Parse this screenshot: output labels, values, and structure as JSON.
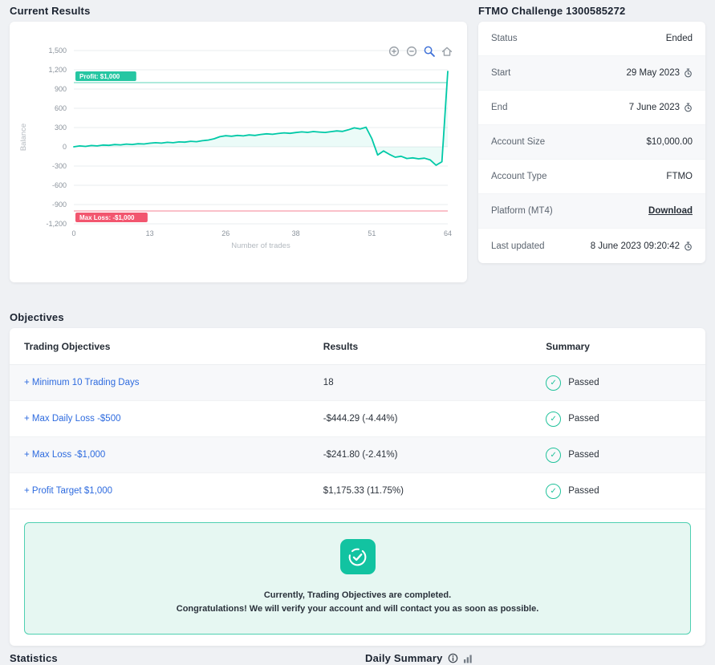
{
  "headings": {
    "current_results": "Current Results",
    "challenge": "FTMO Challenge 1300585272",
    "objectives": "Objectives",
    "statistics": "Statistics",
    "daily_summary": "Daily Summary"
  },
  "colors": {
    "accent_teal": "#00c9a7",
    "danger_red": "#f2566f",
    "link_blue": "#2e6bdf",
    "page_bg": "#eff1f4"
  },
  "chart_data": {
    "type": "line",
    "title": "",
    "xlabel": "Number of trades",
    "ylabel": "Balance",
    "xlim": [
      0,
      64
    ],
    "ylim": [
      -1200,
      1500
    ],
    "xticks": [
      0,
      13,
      26,
      38,
      51,
      64
    ],
    "yticks": [
      1500,
      1200,
      900,
      600,
      300,
      0,
      -300,
      -600,
      -900,
      -1200
    ],
    "ytick_labels": [
      "1,500",
      "1,200",
      "900",
      "600",
      "300",
      "0",
      "-300",
      "-600",
      "-900",
      "-1,200"
    ],
    "grid": true,
    "legend": "none",
    "line_color": "#00c9a7",
    "fill_color": "rgba(0, 201, 167, 0.08)",
    "series": [
      {
        "name": "Balance",
        "y": [
          0,
          14,
          6,
          20,
          14,
          28,
          22,
          35,
          30,
          42,
          36,
          48,
          44,
          56,
          64,
          58,
          70,
          64,
          76,
          72,
          86,
          80,
          95,
          105,
          125,
          158,
          172,
          165,
          178,
          170,
          185,
          178,
          192,
          202,
          195,
          208,
          218,
          210,
          222,
          232,
          225,
          238,
          230,
          224,
          236,
          248,
          240,
          265,
          295,
          278,
          305,
          130,
          -128,
          -65,
          -118,
          -162,
          -148,
          -182,
          -172,
          -188,
          -178,
          -205,
          -288,
          -232,
          1175
        ]
      }
    ],
    "reference_lines": [
      {
        "name": "profit-target-line",
        "label": "Profit: $1,000",
        "value": 1000,
        "color": "#26c6a2"
      },
      {
        "name": "max-loss-line",
        "label": "Max Loss: -$1,000",
        "value": -1000,
        "color": "#f2566f"
      }
    ]
  },
  "modebar_icons": [
    "zoom-in-icon",
    "zoom-out-icon",
    "zoom-box-icon",
    "reset-home-icon"
  ],
  "account_panel": {
    "rows": [
      {
        "key": "status",
        "label": "Status",
        "value": "Ended",
        "clock": false,
        "link": false
      },
      {
        "key": "start",
        "label": "Start",
        "value": "29 May 2023",
        "clock": true,
        "link": false
      },
      {
        "key": "end",
        "label": "End",
        "value": "7 June 2023",
        "clock": true,
        "link": false
      },
      {
        "key": "account-size",
        "label": "Account Size",
        "value": "$10,000.00",
        "clock": false,
        "link": false
      },
      {
        "key": "account-type",
        "label": "Account Type",
        "value": "FTMO",
        "clock": false,
        "link": false
      },
      {
        "key": "platform",
        "label": "Platform (MT4)",
        "value": "Download",
        "clock": false,
        "link": true
      },
      {
        "key": "last-updated",
        "label": "Last updated",
        "value": "8 June 2023 09:20:42",
        "clock": true,
        "link": false
      }
    ]
  },
  "objectives": {
    "columns": [
      "Trading Objectives",
      "Results",
      "Summary"
    ],
    "rows": [
      {
        "objective": "+ Minimum 10 Trading Days",
        "result": "18",
        "summary": "Passed"
      },
      {
        "objective": "+ Max Daily Loss -$500",
        "result": "-$444.29 (-4.44%)",
        "summary": "Passed"
      },
      {
        "objective": "+ Max Loss -$1,000",
        "result": "-$241.80 (-2.41%)",
        "summary": "Passed"
      },
      {
        "objective": "+ Profit Target $1,000",
        "result": "$1,175.33 (11.75%)",
        "summary": "Passed"
      }
    ]
  },
  "message": {
    "line1": "Currently, Trading Objectives are completed.",
    "line2": "Congratulations! We will verify your account and will contact you as soon as possible."
  }
}
